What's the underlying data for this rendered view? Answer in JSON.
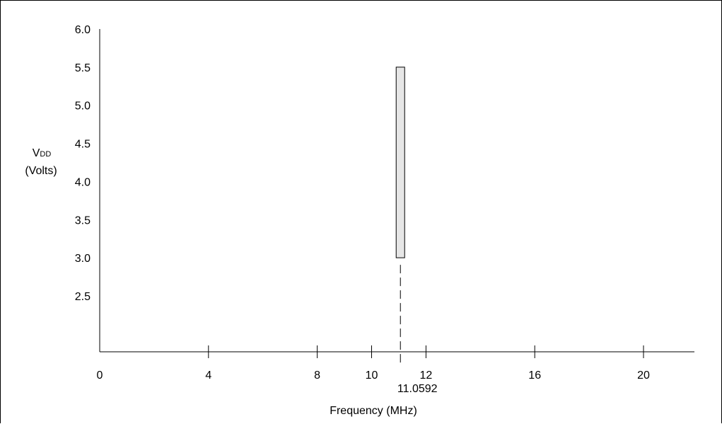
{
  "chart_data": {
    "type": "bar",
    "title": "",
    "xlabel": "Frequency (MHz)",
    "ylabel_symbol": "V",
    "ylabel_subscript": "DD",
    "ylabel_units": "(Volts)",
    "xlim": [
      0,
      21.8
    ],
    "ylim": [
      1.8,
      6.0
    ],
    "x_ticks": [
      0,
      4,
      8,
      10,
      12,
      16,
      20
    ],
    "y_ticks": [
      "2.5",
      "3.0",
      "3.5",
      "4.0",
      "4.5",
      "5.0",
      "5.5",
      "6.0"
    ],
    "operating_region": {
      "frequency": 11.0592,
      "frequency_label": "11.0592",
      "vdd_min": 3.0,
      "vdd_max": 5.5
    },
    "grid": false,
    "legend": "none",
    "colors": {
      "bar_fill": "#e6e6e6",
      "line": "#000000"
    }
  }
}
